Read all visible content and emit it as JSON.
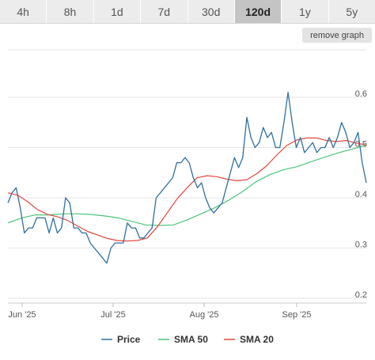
{
  "tabs": [
    {
      "label": "4h",
      "active": false
    },
    {
      "label": "8h",
      "active": false
    },
    {
      "label": "1d",
      "active": false
    },
    {
      "label": "7d",
      "active": false
    },
    {
      "label": "30d",
      "active": false
    },
    {
      "label": "120d",
      "active": true
    },
    {
      "label": "1y",
      "active": false
    },
    {
      "label": "5y",
      "active": false
    }
  ],
  "remove_graph_label": "remove graph",
  "chart_data": {
    "type": "line",
    "title": "",
    "xlabel": "",
    "ylabel": "",
    "x_ticks": [
      "Jun '25",
      "Jul '25",
      "Aug '25",
      "Sep '25"
    ],
    "y_ticks": [
      0.2,
      0.3,
      0.4,
      0.5,
      0.6
    ],
    "ylim": [
      0.2,
      0.62
    ],
    "legend_position": "bottom",
    "grid": true,
    "series": [
      {
        "name": "Price",
        "color": "#2f6f9f",
        "values": [
          0.39,
          0.41,
          0.42,
          0.38,
          0.33,
          0.34,
          0.34,
          0.36,
          0.36,
          0.36,
          0.33,
          0.36,
          0.33,
          0.34,
          0.4,
          0.39,
          0.34,
          0.34,
          0.33,
          0.33,
          0.31,
          0.3,
          0.29,
          0.28,
          0.27,
          0.3,
          0.31,
          0.31,
          0.31,
          0.35,
          0.34,
          0.34,
          0.32,
          0.32,
          0.33,
          0.34,
          0.4,
          0.41,
          0.42,
          0.43,
          0.44,
          0.47,
          0.47,
          0.48,
          0.47,
          0.44,
          0.42,
          0.43,
          0.4,
          0.38,
          0.37,
          0.38,
          0.39,
          0.42,
          0.45,
          0.48,
          0.46,
          0.48,
          0.56,
          0.52,
          0.5,
          0.51,
          0.54,
          0.52,
          0.53,
          0.5,
          0.5,
          0.55,
          0.61,
          0.55,
          0.5,
          0.52,
          0.49,
          0.5,
          0.51,
          0.49,
          0.5,
          0.5,
          0.52,
          0.5,
          0.52,
          0.55,
          0.53,
          0.5,
          0.51,
          0.53,
          0.47,
          0.43
        ]
      },
      {
        "name": "SMA 50",
        "color": "#4cc47a",
        "values": [
          0.35,
          0.36,
          0.366,
          0.366,
          0.368,
          0.368,
          0.367,
          0.364,
          0.36,
          0.353,
          0.346,
          0.345,
          0.346,
          0.356,
          0.368,
          0.38,
          0.395,
          0.412,
          0.432,
          0.446,
          0.456,
          0.462,
          0.472,
          0.481,
          0.49,
          0.497,
          0.505
        ]
      },
      {
        "name": "SMA 20",
        "color": "#e0483c",
        "values": [
          0.41,
          0.405,
          0.392,
          0.376,
          0.367,
          0.362,
          0.355,
          0.344,
          0.333,
          0.326,
          0.319,
          0.315,
          0.314,
          0.315,
          0.32,
          0.342,
          0.37,
          0.398,
          0.42,
          0.44,
          0.444,
          0.442,
          0.437,
          0.434,
          0.436,
          0.448,
          0.464,
          0.485,
          0.504,
          0.515,
          0.519,
          0.519,
          0.514,
          0.512,
          0.514,
          0.509,
          0.505
        ]
      }
    ]
  }
}
